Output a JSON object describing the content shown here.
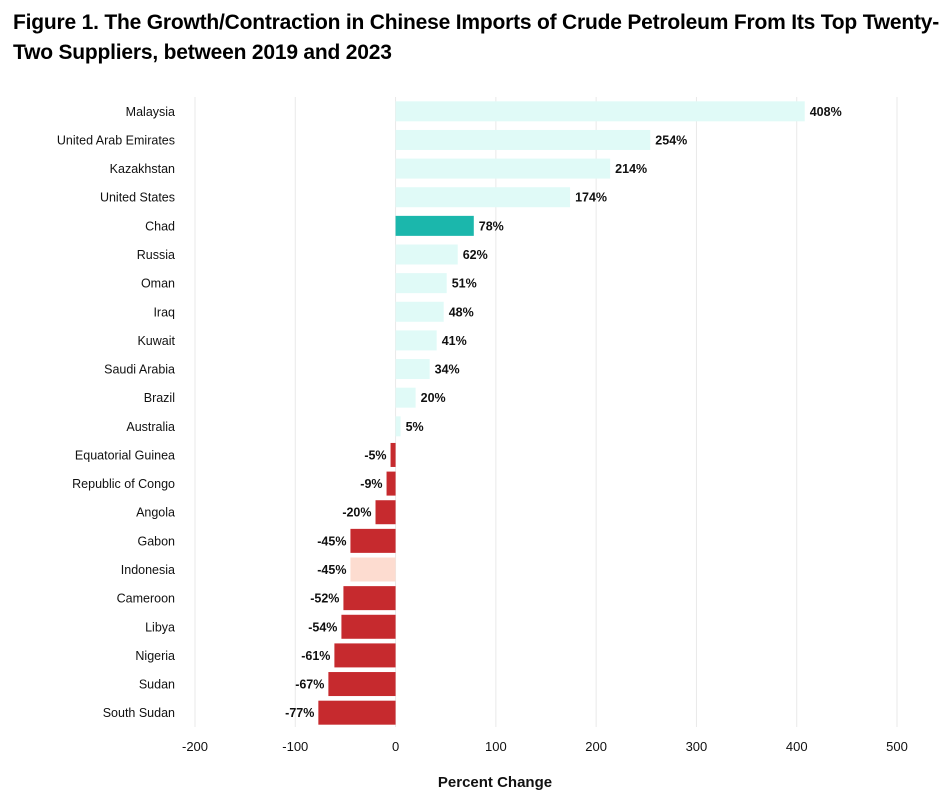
{
  "chart_data": {
    "type": "bar",
    "orientation": "horizontal",
    "title": "Figure 1. The Growth/Contraction in Chinese Imports of Crude Petroleum From Its Top Twenty-Two Suppliers, between 2019 and 2023",
    "xlabel": "Percent Change",
    "ylabel": "",
    "xlim": [
      -200,
      500
    ],
    "xticks": [
      -200,
      -100,
      0,
      100,
      200,
      300,
      400,
      500
    ],
    "grid": "vertical",
    "categories": [
      "Malaysia",
      "United Arab Emirates",
      "Kazakhstan",
      "United States",
      "Chad",
      "Russia",
      "Oman",
      "Iraq",
      "Kuwait",
      "Saudi Arabia",
      "Brazil",
      "Australia",
      "Equatorial Guinea",
      "Republic of Congo",
      "Angola",
      "Gabon",
      "Indonesia",
      "Cameroon",
      "Libya",
      "Nigeria",
      "Sudan",
      "South Sudan"
    ],
    "values": [
      408,
      254,
      214,
      174,
      78,
      62,
      51,
      48,
      41,
      34,
      20,
      5,
      -5,
      -9,
      -20,
      -45,
      -45,
      -52,
      -54,
      -61,
      -67,
      -77
    ],
    "labels": [
      "408%",
      "254%",
      "214%",
      "174%",
      "78%",
      "62%",
      "51%",
      "48%",
      "41%",
      "34%",
      "20%",
      "5%",
      "-5%",
      "-9%",
      "-20%",
      "-45%",
      "-45%",
      "-52%",
      "-54%",
      "-61%",
      "-67%",
      "-77%"
    ],
    "colors": {
      "positive": "#e0faf7",
      "positive_highlight": "#1bb7ac",
      "negative": "#c62a2e",
      "negative_highlight": "#fddcd0"
    },
    "highlighted": [
      "Chad",
      "Indonesia"
    ]
  }
}
